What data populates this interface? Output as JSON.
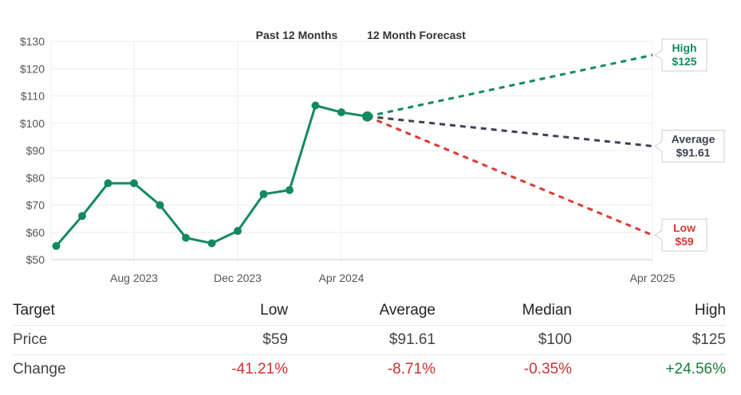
{
  "chart_data": {
    "type": "line",
    "header": {
      "past_label": "Past 12 Months",
      "forecast_label": "12 Month Forecast"
    },
    "y_ticks": [
      "$130",
      "$120",
      "$110",
      "$100",
      "$90",
      "$80",
      "$70",
      "$60",
      "$50"
    ],
    "ylim": [
      50,
      130
    ],
    "x_ticks": [
      {
        "label": "Aug 2023",
        "month": 2
      },
      {
        "label": "Dec 2023",
        "month": 6
      },
      {
        "label": "Apr 2024",
        "month": 10
      },
      {
        "label": "Apr 2025",
        "month": 22
      }
    ],
    "xlim": [
      -1.2,
      22
    ],
    "history": {
      "color": "#138a5e",
      "points": [
        {
          "month": -1,
          "value": 55
        },
        {
          "month": 0,
          "value": 66
        },
        {
          "month": 1,
          "value": 78
        },
        {
          "month": 2,
          "value": 78
        },
        {
          "month": 3,
          "value": 70
        },
        {
          "month": 4,
          "value": 58
        },
        {
          "month": 5,
          "value": 56
        },
        {
          "month": 6,
          "value": 60.5
        },
        {
          "month": 7,
          "value": 74
        },
        {
          "month": 8,
          "value": 75.5
        },
        {
          "month": 9,
          "value": 106.5
        },
        {
          "month": 10,
          "value": 104
        },
        {
          "month": 11,
          "value": 102.5
        }
      ]
    },
    "forecasts": [
      {
        "key": "high",
        "title": "High",
        "label": "$125",
        "value": 125,
        "color": "#138a5e"
      },
      {
        "key": "average",
        "title": "Average",
        "label": "$91.61",
        "value": 91.61,
        "color": "#3c4252"
      },
      {
        "key": "low",
        "title": "Low",
        "label": "$59",
        "value": 59,
        "color": "#d93a34"
      }
    ],
    "forecast_start": {
      "month": 11,
      "value": 102.5
    },
    "forecast_end_month": 22
  },
  "table": {
    "headers": [
      "Target",
      "Low",
      "Average",
      "Median",
      "High"
    ],
    "rows": [
      {
        "label": "Price",
        "low": "$59",
        "average": "$91.61",
        "median": "$100",
        "high": "$125"
      },
      {
        "label": "Change",
        "low": "-41.21%",
        "average": "-8.71%",
        "median": "-0.35%",
        "high": "+24.56%"
      }
    ]
  }
}
